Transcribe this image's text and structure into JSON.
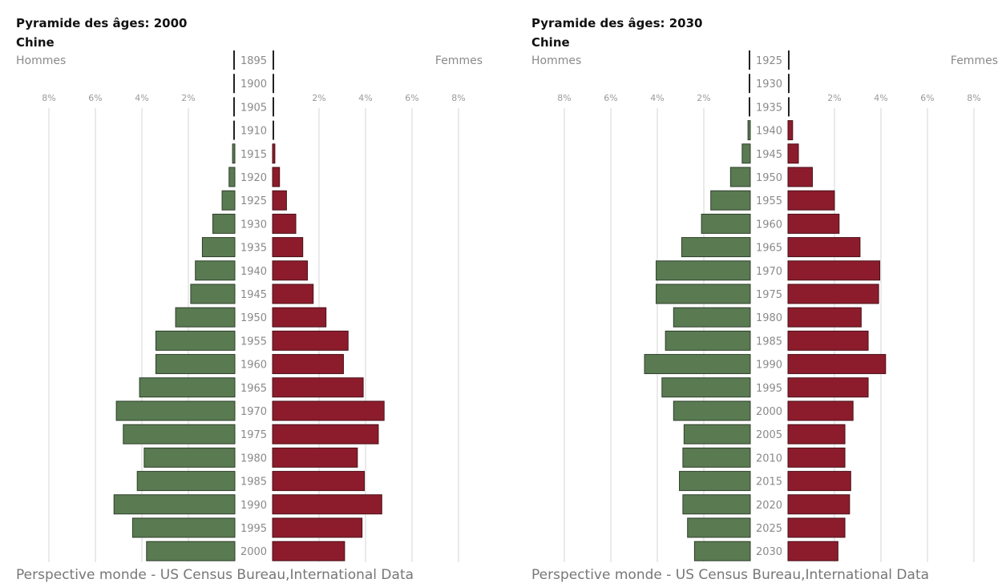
{
  "chart_data": [
    {
      "type": "bar",
      "orientation": "horizontal",
      "chart_kind": "population-pyramid",
      "title": "Pyramide des âges: 2000",
      "subtitle": "Chine",
      "left_label": "Hommes",
      "right_label": "Femmes",
      "source": "Perspective monde - US Census Bureau,International Data",
      "xlim": [
        -8,
        8
      ],
      "x_ticks": [
        "8%",
        "6%",
        "4%",
        "2%",
        "2%",
        "4%",
        "6%",
        "8%"
      ],
      "grid": true,
      "categories": [
        "1895",
        "1900",
        "1905",
        "1910",
        "1915",
        "1920",
        "1925",
        "1930",
        "1935",
        "1940",
        "1945",
        "1950",
        "1955",
        "1960",
        "1965",
        "1970",
        "1975",
        "1980",
        "1985",
        "1990",
        "1995",
        "2000"
      ],
      "series": [
        {
          "name": "Hommes",
          "color": "#5a7a52",
          "values": [
            0,
            0,
            0,
            0,
            0.1,
            0.25,
            0.55,
            0.95,
            1.4,
            1.7,
            1.9,
            2.55,
            3.4,
            3.4,
            4.1,
            5.1,
            4.8,
            3.9,
            4.2,
            5.2,
            4.4,
            3.8
          ]
        },
        {
          "name": "Femmes",
          "color": "#8c1c2c",
          "values": [
            0,
            0,
            0,
            0,
            0.1,
            0.3,
            0.6,
            1.0,
            1.3,
            1.5,
            1.75,
            2.3,
            3.25,
            3.05,
            3.9,
            4.8,
            4.55,
            3.65,
            3.95,
            4.7,
            3.85,
            3.1
          ]
        }
      ]
    },
    {
      "type": "bar",
      "orientation": "horizontal",
      "chart_kind": "population-pyramid",
      "title": "Pyramide des âges: 2030",
      "subtitle": "Chine",
      "left_label": "Hommes",
      "right_label": "Femmes",
      "source": "Perspective monde - US Census Bureau,International Data",
      "xlim": [
        -8,
        8
      ],
      "x_ticks": [
        "8%",
        "6%",
        "4%",
        "2%",
        "2%",
        "4%",
        "6%",
        "8%"
      ],
      "grid": true,
      "categories": [
        "1925",
        "1930",
        "1935",
        "1940",
        "1945",
        "1950",
        "1955",
        "1960",
        "1965",
        "1970",
        "1975",
        "1980",
        "1985",
        "1990",
        "1995",
        "2000",
        "2005",
        "2010",
        "2015",
        "2020",
        "2025",
        "2030"
      ],
      "series": [
        {
          "name": "Hommes",
          "color": "#5a7a52",
          "values": [
            0,
            0,
            0,
            0.1,
            0.35,
            0.85,
            1.7,
            2.1,
            2.95,
            4.05,
            4.05,
            3.3,
            3.65,
            4.55,
            3.8,
            3.3,
            2.85,
            2.9,
            3.05,
            2.9,
            2.7,
            2.4
          ]
        },
        {
          "name": "Femmes",
          "color": "#8c1c2c",
          "values": [
            0,
            0,
            0,
            0.2,
            0.45,
            1.05,
            2.0,
            2.2,
            3.1,
            3.95,
            3.9,
            3.15,
            3.45,
            4.2,
            3.45,
            2.8,
            2.45,
            2.45,
            2.7,
            2.65,
            2.45,
            2.15
          ]
        }
      ]
    }
  ]
}
